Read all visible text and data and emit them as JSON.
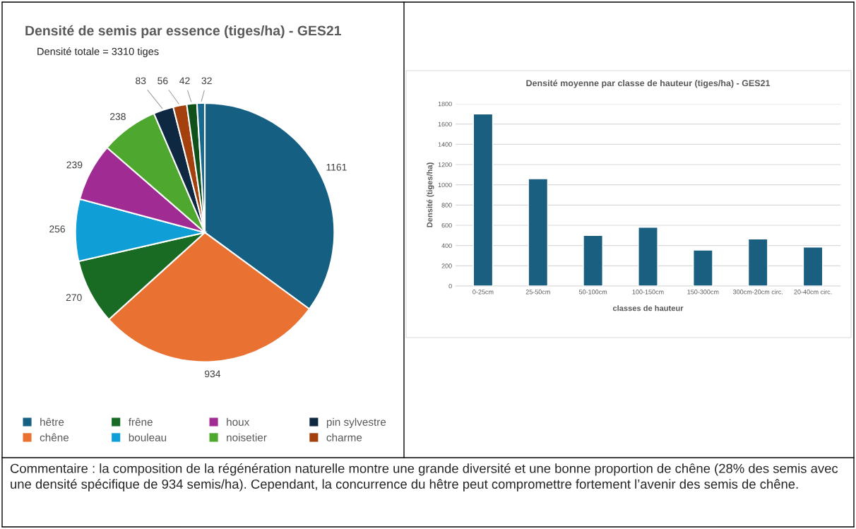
{
  "chart_data": [
    {
      "type": "pie",
      "title": "Densité de semis par essence (tiges/ha) - GES21",
      "subtitle": "Densité totale = 3310 tiges",
      "categories": [
        "hêtre",
        "chêne",
        "frêne",
        "bouleau",
        "houx",
        "noisetier",
        "pin sylvestre",
        "charme",
        null,
        null
      ],
      "values": [
        1161,
        934,
        270,
        256,
        239,
        238,
        83,
        56,
        42,
        32
      ],
      "colors": [
        "#156082",
        "#e97132",
        "#196b24",
        "#0f9ed5",
        "#a02b93",
        "#4ea72e",
        "#0e2841",
        "#a3400e",
        "#10501a",
        "#166a90"
      ],
      "data_labels": true,
      "legend": "bottom",
      "annotations": [
        "Commentaire : la composition de la régénération naturelle montre une grande diversité et une bonne proportion de chêne (28% des semis avec une densité spécifique de 934 semis/ha). Cependant, la concurrence du hêtre peut compromettre fortement l’avenir des semis de chêne."
      ]
    },
    {
      "type": "bar",
      "title": "Densité moyenne par classe de hauteur (tiges/ha) - GES21",
      "xlabel": "classes de hauteur",
      "ylabel": "Densité (tiges/ha)",
      "categories": [
        "0-25cm",
        "25-50cm",
        "50-100cm",
        "100-150cm",
        "150-300cm",
        "300cm-20cm circ.",
        "20-40cm circ."
      ],
      "values": [
        1700,
        1060,
        500,
        580,
        355,
        465,
        385
      ],
      "color": "#1a5e80",
      "ylim": [
        0,
        1800
      ],
      "yticks": [
        0,
        200,
        400,
        600,
        800,
        1000,
        1200,
        1400,
        1600,
        1800
      ],
      "grid": "y"
    }
  ]
}
